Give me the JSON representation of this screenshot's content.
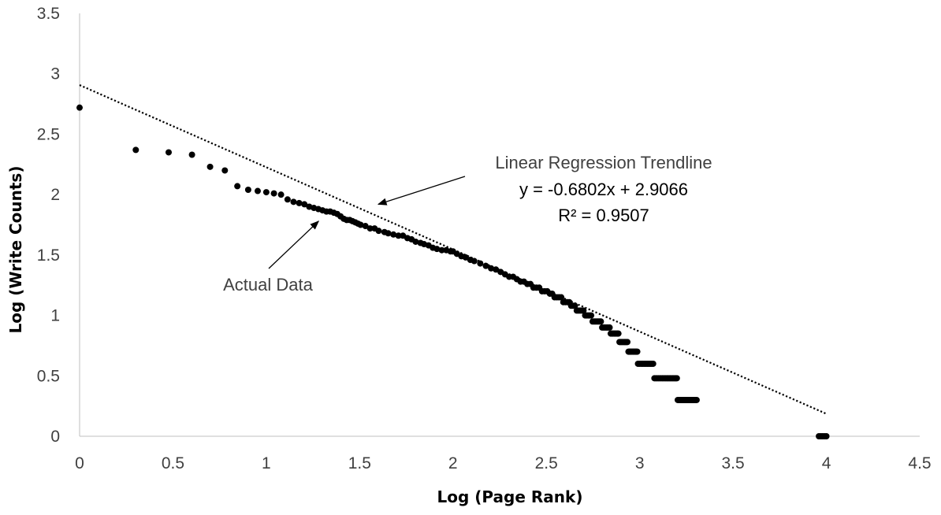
{
  "chart_data": {
    "type": "scatter",
    "xlabel": "Log (Page Rank)",
    "ylabel": "Log (Write Counts)",
    "xlim": [
      0,
      4.5
    ],
    "ylim": [
      0,
      3.5
    ],
    "x_ticks": [
      "0",
      "0.5",
      "1",
      "1.5",
      "2",
      "2.5",
      "3",
      "3.5",
      "4",
      "4.5"
    ],
    "y_ticks": [
      "0",
      "0.5",
      "1",
      "1.5",
      "2",
      "2.5",
      "3",
      "3.5"
    ],
    "gridlines": false,
    "point_color": "#000000",
    "trendline": {
      "style": "dotted",
      "slope": -0.6802,
      "intercept": 2.9066,
      "x_range": [
        0,
        4
      ]
    },
    "series": [
      {
        "points": [
          [
            0,
            2.72
          ],
          [
            0.301,
            2.37
          ],
          [
            0.477,
            2.35
          ],
          [
            0.602,
            2.33
          ],
          [
            0.699,
            2.23
          ],
          [
            0.778,
            2.2
          ],
          [
            0.845,
            2.07
          ],
          [
            0.903,
            2.04
          ],
          [
            0.954,
            2.03
          ],
          [
            1.0,
            2.02
          ],
          [
            1.041,
            2.01
          ],
          [
            1.079,
            2.0
          ],
          [
            1.114,
            1.96
          ],
          [
            1.146,
            1.94
          ],
          [
            1.176,
            1.93
          ],
          [
            1.204,
            1.92
          ],
          [
            1.23,
            1.9
          ],
          [
            1.255,
            1.89
          ],
          [
            1.279,
            1.88
          ],
          [
            1.301,
            1.87
          ],
          [
            1.322,
            1.86
          ],
          [
            1.342,
            1.86
          ],
          [
            1.362,
            1.85
          ],
          [
            1.38,
            1.84
          ],
          [
            1.398,
            1.82
          ],
          [
            1.415,
            1.8
          ],
          [
            1.431,
            1.79
          ],
          [
            1.447,
            1.79
          ],
          [
            1.462,
            1.78
          ],
          [
            1.477,
            1.77
          ],
          [
            1.491,
            1.76
          ],
          [
            1.505,
            1.75
          ],
          [
            1.531,
            1.74
          ],
          [
            1.556,
            1.72
          ],
          [
            1.58,
            1.72
          ],
          [
            1.602,
            1.7
          ],
          [
            1.633,
            1.69
          ],
          [
            1.653,
            1.68
          ],
          [
            1.681,
            1.67
          ],
          [
            1.708,
            1.66
          ],
          [
            1.732,
            1.66
          ],
          [
            1.756,
            1.64
          ],
          [
            1.778,
            1.63
          ],
          [
            1.8,
            1.61
          ],
          [
            1.826,
            1.6
          ],
          [
            1.845,
            1.59
          ],
          [
            1.869,
            1.58
          ],
          [
            1.892,
            1.56
          ],
          [
            1.914,
            1.55
          ],
          [
            1.94,
            1.54
          ],
          [
            1.964,
            1.54
          ],
          [
            1.987,
            1.53
          ],
          [
            2.0,
            1.53
          ],
          [
            2.021,
            1.51
          ],
          [
            2.045,
            1.49
          ],
          [
            2.068,
            1.48
          ],
          [
            2.093,
            1.46
          ],
          [
            2.114,
            1.45
          ],
          [
            2.146,
            1.43
          ],
          [
            2.176,
            1.41
          ],
          [
            2.204,
            1.39
          ],
          [
            2.23,
            1.38
          ],
          [
            2.255,
            1.36
          ],
          [
            2.279,
            1.34
          ],
          [
            2.301,
            1.32
          ],
          [
            2.322,
            1.32
          ],
          [
            2.342,
            1.3
          ],
          [
            2.362,
            1.28
          ],
          [
            2.38,
            1.28
          ],
          [
            2.398,
            1.26
          ],
          [
            2.415,
            1.26
          ],
          [
            2.431,
            1.23
          ],
          [
            2.447,
            1.23
          ],
          [
            2.462,
            1.23
          ],
          [
            2.477,
            1.2
          ],
          [
            2.491,
            1.2
          ],
          [
            2.505,
            1.2
          ],
          [
            2.519,
            1.18
          ],
          [
            2.531,
            1.18
          ],
          [
            2.544,
            1.15
          ],
          [
            2.556,
            1.15
          ],
          [
            2.568,
            1.15
          ],
          [
            2.58,
            1.15
          ],
          [
            2.591,
            1.11
          ],
          [
            2.602,
            1.11
          ],
          [
            2.613,
            1.11
          ],
          [
            2.623,
            1.11
          ],
          [
            2.633,
            1.08
          ],
          [
            2.643,
            1.08
          ],
          [
            2.653,
            1.08
          ],
          [
            2.663,
            1.04
          ],
          [
            2.672,
            1.04
          ],
          [
            2.681,
            1.04
          ],
          [
            2.69,
            1.04
          ],
          [
            2.699,
            1.04
          ],
          [
            2.708,
            1.0
          ],
          [
            2.716,
            1.0
          ],
          [
            2.724,
            1.0
          ],
          [
            2.732,
            1.0
          ],
          [
            2.74,
            1.0
          ],
          [
            2.748,
            0.95
          ],
          [
            2.756,
            0.95
          ],
          [
            2.763,
            0.95
          ],
          [
            2.771,
            0.95
          ],
          [
            2.778,
            0.95
          ],
          [
            2.785,
            0.95
          ],
          [
            2.792,
            0.95
          ],
          [
            2.799,
            0.9
          ],
          [
            2.806,
            0.9
          ],
          [
            2.813,
            0.9
          ],
          [
            2.82,
            0.9
          ],
          [
            2.826,
            0.9
          ],
          [
            2.833,
            0.9
          ],
          [
            2.839,
            0.9
          ],
          [
            2.845,
            0.85
          ],
          [
            2.851,
            0.85
          ],
          [
            2.857,
            0.85
          ],
          [
            2.863,
            0.85
          ],
          [
            2.869,
            0.85
          ],
          [
            2.875,
            0.85
          ],
          [
            2.881,
            0.85
          ],
          [
            2.886,
            0.85
          ],
          [
            2.892,
            0.78
          ],
          [
            2.897,
            0.78
          ],
          [
            2.903,
            0.78
          ],
          [
            2.908,
            0.78
          ],
          [
            2.914,
            0.78
          ],
          [
            2.919,
            0.78
          ],
          [
            2.924,
            0.78
          ],
          [
            2.929,
            0.78
          ],
          [
            2.934,
            0.78
          ],
          [
            2.94,
            0.7
          ],
          [
            2.945,
            0.7
          ],
          [
            2.949,
            0.7
          ],
          [
            2.954,
            0.7
          ],
          [
            2.959,
            0.7
          ],
          [
            2.964,
            0.7
          ],
          [
            2.968,
            0.7
          ],
          [
            2.973,
            0.7
          ],
          [
            2.978,
            0.7
          ],
          [
            2.982,
            0.7
          ],
          [
            2.987,
            0.7
          ],
          [
            2.991,
            0.6
          ],
          [
            3.0,
            0.6
          ],
          [
            3.009,
            0.6
          ],
          [
            3.017,
            0.6
          ],
          [
            3.025,
            0.6
          ],
          [
            3.033,
            0.6
          ],
          [
            3.041,
            0.6
          ],
          [
            3.049,
            0.6
          ],
          [
            3.057,
            0.6
          ],
          [
            3.064,
            0.6
          ],
          [
            3.072,
            0.6
          ],
          [
            3.079,
            0.48
          ],
          [
            3.086,
            0.48
          ],
          [
            3.093,
            0.48
          ],
          [
            3.1,
            0.48
          ],
          [
            3.107,
            0.48
          ],
          [
            3.114,
            0.48
          ],
          [
            3.121,
            0.48
          ],
          [
            3.127,
            0.48
          ],
          [
            3.134,
            0.48
          ],
          [
            3.14,
            0.48
          ],
          [
            3.146,
            0.48
          ],
          [
            3.152,
            0.48
          ],
          [
            3.158,
            0.48
          ],
          [
            3.164,
            0.48
          ],
          [
            3.17,
            0.48
          ],
          [
            3.176,
            0.48
          ],
          [
            3.182,
            0.48
          ],
          [
            3.188,
            0.48
          ],
          [
            3.193,
            0.48
          ],
          [
            3.199,
            0.48
          ],
          [
            3.204,
            0.3
          ],
          [
            3.21,
            0.3
          ],
          [
            3.215,
            0.3
          ],
          [
            3.22,
            0.3
          ],
          [
            3.225,
            0.3
          ],
          [
            3.23,
            0.3
          ],
          [
            3.236,
            0.3
          ],
          [
            3.241,
            0.3
          ],
          [
            3.246,
            0.3
          ],
          [
            3.25,
            0.3
          ],
          [
            3.255,
            0.3
          ],
          [
            3.26,
            0.3
          ],
          [
            3.265,
            0.3
          ],
          [
            3.27,
            0.3
          ],
          [
            3.274,
            0.3
          ],
          [
            3.279,
            0.3
          ],
          [
            3.283,
            0.3
          ],
          [
            3.288,
            0.3
          ],
          [
            3.292,
            0.3
          ],
          [
            3.297,
            0.3
          ],
          [
            3.301,
            0.3
          ],
          [
            3.305,
            0.3
          ],
          [
            3.96,
            0.0
          ],
          [
            3.97,
            0.0
          ],
          [
            3.98,
            0.0
          ],
          [
            3.99,
            0.0
          ],
          [
            4.0,
            0.0
          ]
        ]
      }
    ],
    "annotations": [
      {
        "lines": [
          "Linear Regression Trendline",
          "y = -0.6802x + 2.9066",
          "R² = 0.9507"
        ],
        "arrow_to": [
          1.6,
          1.92
        ]
      },
      {
        "lines": [
          "Actual Data"
        ],
        "arrow_to": [
          1.28,
          1.78
        ]
      }
    ]
  }
}
